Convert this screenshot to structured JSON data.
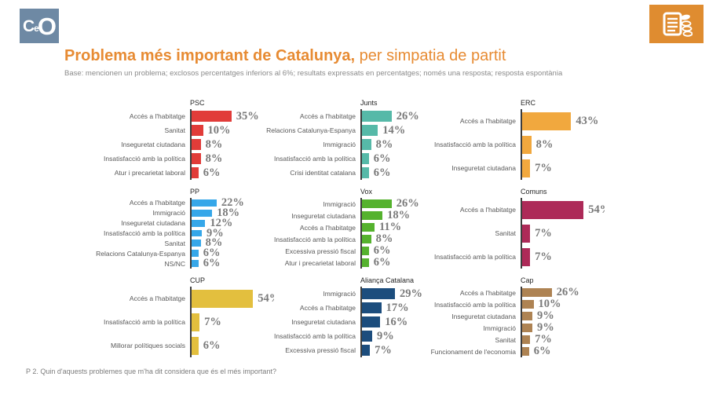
{
  "header": {
    "logo": {
      "c": "C",
      "e": "e",
      "o": "O",
      "bg_color": "#6e89a4"
    },
    "corner_icon": "document-coins-icon",
    "corner_icon_bg": "#df8c30",
    "title_bold": "Problema més important de Catalunya,",
    "title_light": " per simpatia de partit",
    "title_color": "#e78b33",
    "subtitle": "Base: mencionen un problema; exclosos percentatges inferiors al 6%; resultats expressats en percentatges; només una resposta; resposta espontània"
  },
  "chart_data": {
    "type": "bar",
    "orientation": "horizontal",
    "unit": "%",
    "xlim": [
      0,
      60
    ],
    "grid": false,
    "layout": "3x3 small multiples by party",
    "charts": [
      {
        "party": "PSC",
        "color": "#e13c39",
        "rows": [
          {
            "label": "Accés a l'habitatge",
            "value": 35,
            "display": "35%"
          },
          {
            "label": "Sanitat",
            "value": 10,
            "display": "10%"
          },
          {
            "label": "Inseguretat ciutadana",
            "value": 8,
            "display": "8%"
          },
          {
            "label": "Insatisfacció amb la política",
            "value": 8,
            "display": "8%"
          },
          {
            "label": "Atur i precarietat laboral",
            "value": 6,
            "display": "6%"
          }
        ]
      },
      {
        "party": "Junts",
        "color": "#56b9a8",
        "rows": [
          {
            "label": "Accés a l'habitatge",
            "value": 26,
            "display": "26%"
          },
          {
            "label": "Relacions Catalunya-Espanya",
            "value": 14,
            "display": "14%"
          },
          {
            "label": "Immigració",
            "value": 8,
            "display": "8%"
          },
          {
            "label": "Insatisfacció amb la política",
            "value": 6,
            "display": "6%"
          },
          {
            "label": "Crisi identitat catalana",
            "value": 6,
            "display": "6%"
          }
        ]
      },
      {
        "party": "ERC",
        "color": "#f1a83e",
        "rows": [
          {
            "label": "Accés a l'habitatge",
            "value": 43,
            "display": "43%"
          },
          {
            "label": "Insatisfacció amb la política",
            "value": 8,
            "display": "8%"
          },
          {
            "label": "Inseguretat ciutadana",
            "value": 7,
            "display": "7%"
          }
        ]
      },
      {
        "party": "PP",
        "color": "#36a7e9",
        "rows": [
          {
            "label": "Accés a l'habitatge",
            "value": 22,
            "display": "22%"
          },
          {
            "label": "Immigració",
            "value": 18,
            "display": "18%"
          },
          {
            "label": "Inseguretat ciutadana",
            "value": 12,
            "display": "12%"
          },
          {
            "label": "Insatisfacció amb la política",
            "value": 9,
            "display": "9%"
          },
          {
            "label": "Sanitat",
            "value": 8,
            "display": "8%"
          },
          {
            "label": "Relacions Catalunya-Espanya",
            "value": 6,
            "display": "6%"
          },
          {
            "label": "NS/NC",
            "value": 6,
            "display": "6%"
          }
        ]
      },
      {
        "party": "Vox",
        "color": "#55b22e",
        "rows": [
          {
            "label": "Immigració",
            "value": 26,
            "display": "26%"
          },
          {
            "label": "Inseguretat ciutadana",
            "value": 18,
            "display": "18%"
          },
          {
            "label": "Accés a l'habitatge",
            "value": 11,
            "display": "11%"
          },
          {
            "label": "Insatisfacció amb la política",
            "value": 8,
            "display": "8%"
          },
          {
            "label": "Excessiva pressió fiscal",
            "value": 6,
            "display": "6%"
          },
          {
            "label": "Atur i precarietat laboral",
            "value": 6,
            "display": "6%"
          }
        ]
      },
      {
        "party": "Comuns",
        "color": "#ad2a58",
        "rows": [
          {
            "label": "Accés a l'habitatge",
            "value": 54,
            "display": "54%",
            "clipped": true
          },
          {
            "label": "Sanitat",
            "value": 7,
            "display": "7%"
          },
          {
            "label": "Insatisfacció amb la política",
            "value": 7,
            "display": "7%"
          }
        ]
      },
      {
        "party": "CUP",
        "color": "#e3bf3e",
        "rows": [
          {
            "label": "Accés a l'habitatge",
            "value": 54,
            "display": "54%",
            "clipped": true
          },
          {
            "label": "Insatisfacció amb la política",
            "value": 7,
            "display": "7%"
          },
          {
            "label": "Millorar polítiques socials",
            "value": 6,
            "display": "6%"
          }
        ]
      },
      {
        "party": "Aliança Catalana",
        "color": "#1c4d7d",
        "rows": [
          {
            "label": "Immigració",
            "value": 29,
            "display": "29%"
          },
          {
            "label": "Accés a l'habitatge",
            "value": 17,
            "display": "17%"
          },
          {
            "label": "Inseguretat ciutadana",
            "value": 16,
            "display": "16%"
          },
          {
            "label": "Insatisfacció amb la política",
            "value": 9,
            "display": "9%"
          },
          {
            "label": "Excessiva pressió fiscal",
            "value": 7,
            "display": "7%"
          }
        ]
      },
      {
        "party": "Cap",
        "color": "#ae8353",
        "rows": [
          {
            "label": "Accés a l'habitatge",
            "value": 26,
            "display": "26%"
          },
          {
            "label": "Insatisfacció amb la política",
            "value": 10,
            "display": "10%"
          },
          {
            "label": "Inseguretat ciutadana",
            "value": 9,
            "display": "9%"
          },
          {
            "label": "Immigració",
            "value": 9,
            "display": "9%"
          },
          {
            "label": "Sanitat",
            "value": 7,
            "display": "7%"
          },
          {
            "label": "Funcionament de l'economia",
            "value": 6,
            "display": "6%"
          }
        ]
      }
    ]
  },
  "footer": {
    "question": "P 2. Quin d'aquests problemes que m'ha dit considera que és el més important?"
  }
}
